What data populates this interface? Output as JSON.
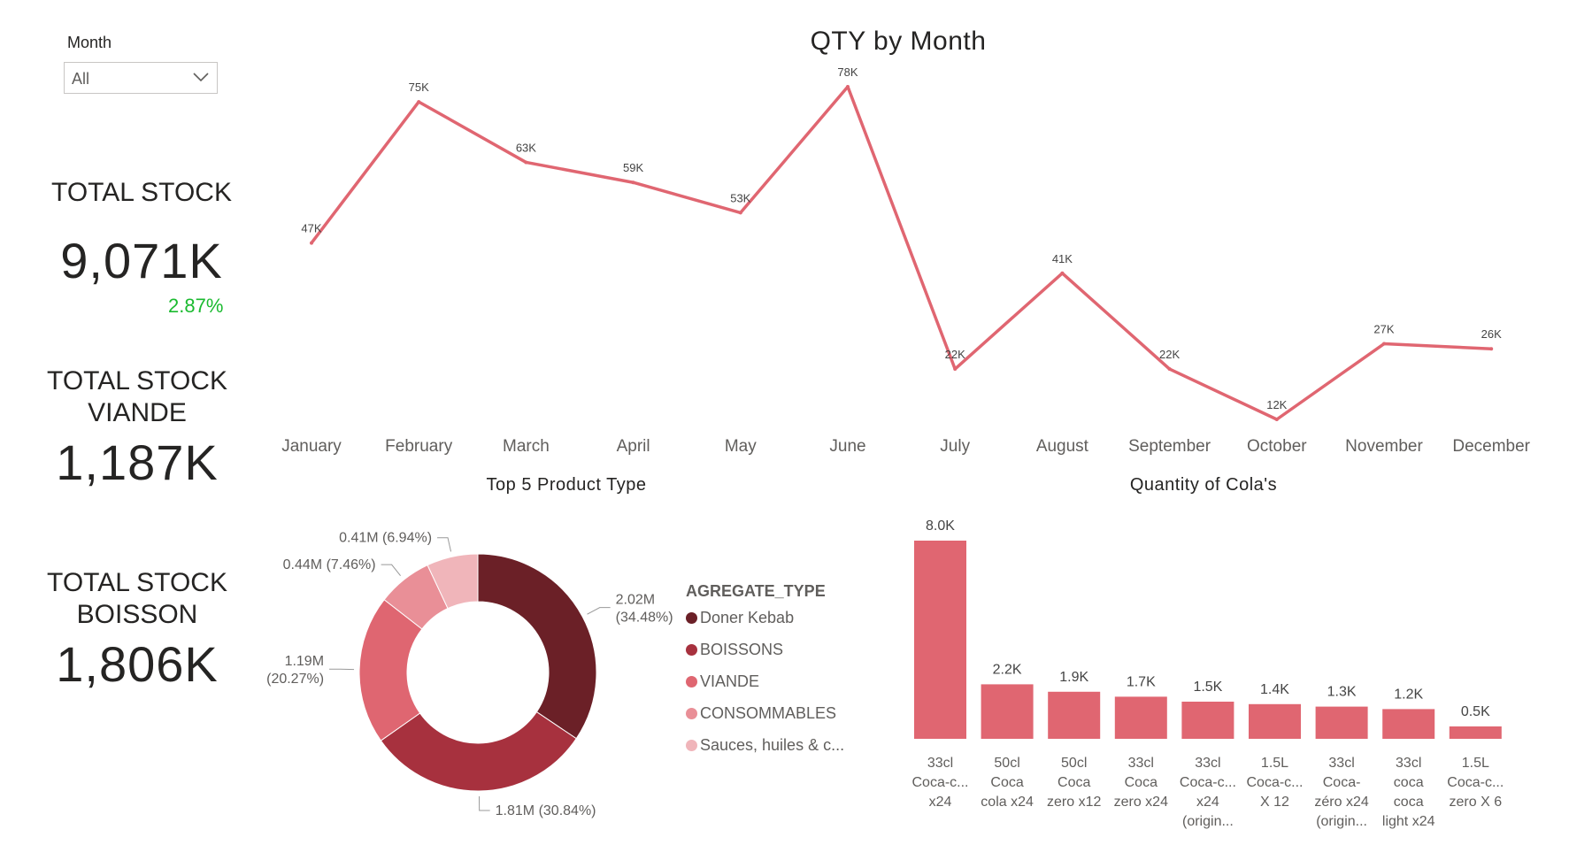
{
  "slicer": {
    "label": "Month",
    "value": "All",
    "icon": "chevron-down-icon"
  },
  "kpis": {
    "total_stock": {
      "title": "TOTAL STOCK",
      "value": "9,071K",
      "change": "2.87%",
      "change_color": "#1aba2f"
    },
    "total_stock_viande": {
      "title_line1": "TOTAL STOCK",
      "title_line2": "VIANDE",
      "value": "1,187K"
    },
    "total_stock_boisson": {
      "title_line1": "TOTAL STOCK",
      "title_line2": "BOISSON",
      "value": "1,806K"
    }
  },
  "colors": {
    "line": "#e06671",
    "bar": "#e06671",
    "donut": [
      "#6b2027",
      "#a7313e",
      "#df6671",
      "#e98f97",
      "#f0b5ba"
    ]
  },
  "chart_data": [
    {
      "type": "line",
      "title": "QTY by Month",
      "categories": [
        "January",
        "February",
        "March",
        "April",
        "May",
        "June",
        "July",
        "August",
        "September",
        "October",
        "November",
        "December"
      ],
      "values": [
        47000,
        75000,
        63000,
        59000,
        53000,
        78000,
        22000,
        41000,
        22000,
        12000,
        27000,
        26000
      ],
      "data_labels": [
        "47K",
        "75K",
        "63K",
        "59K",
        "53K",
        "78K",
        "22K",
        "41K",
        "22K",
        "12K",
        "27K",
        "26K"
      ],
      "xlabel": "",
      "ylabel": "",
      "ylim": [
        12000,
        78000
      ],
      "grid": false
    },
    {
      "type": "pie",
      "title": "Top 5 Product Type",
      "legend_title": "AGREGATE_TYPE",
      "legend_position": "right",
      "categories": [
        "Doner Kebab",
        "BOISSONS",
        "VIANDE",
        "CONSOMMABLES",
        "Sauces, huiles & c..."
      ],
      "values": [
        2.02,
        1.81,
        1.19,
        0.44,
        0.41
      ],
      "percentages": [
        34.48,
        30.84,
        20.27,
        7.46,
        6.94
      ],
      "unit": "M",
      "data_labels": [
        "2.02M (34.48%)",
        "1.81M (30.84%)",
        "1.19M (20.27%)",
        "0.44M (7.46%)",
        "0.41M (6.94%)"
      ]
    },
    {
      "type": "bar",
      "title": "Quantity of Cola's",
      "categories": [
        [
          "33cl",
          "Coca-c...",
          "x24"
        ],
        [
          "50cl",
          "Coca",
          "cola x24"
        ],
        [
          "50cl",
          "Coca",
          "zero x12"
        ],
        [
          "33cl",
          "Coca",
          "zero x24"
        ],
        [
          "33cl",
          "Coca-c...",
          "x24",
          "(origin..."
        ],
        [
          "1.5L",
          "Coca-c...",
          "X 12"
        ],
        [
          "33cl",
          "Coca-",
          "zéro x24",
          "(origin..."
        ],
        [
          "33cl",
          "coca",
          "coca",
          "light x24"
        ],
        [
          "1.5L",
          "Coca-c...",
          "zero X 6"
        ]
      ],
      "values": [
        8.0,
        2.2,
        1.9,
        1.7,
        1.5,
        1.4,
        1.3,
        1.2,
        0.5
      ],
      "data_labels": [
        "8.0K",
        "2.2K",
        "1.9K",
        "1.7K",
        "1.5K",
        "1.4K",
        "1.3K",
        "1.2K",
        "0.5K"
      ],
      "unit": "K",
      "ylim": [
        0,
        8.0
      ],
      "grid": false
    }
  ]
}
